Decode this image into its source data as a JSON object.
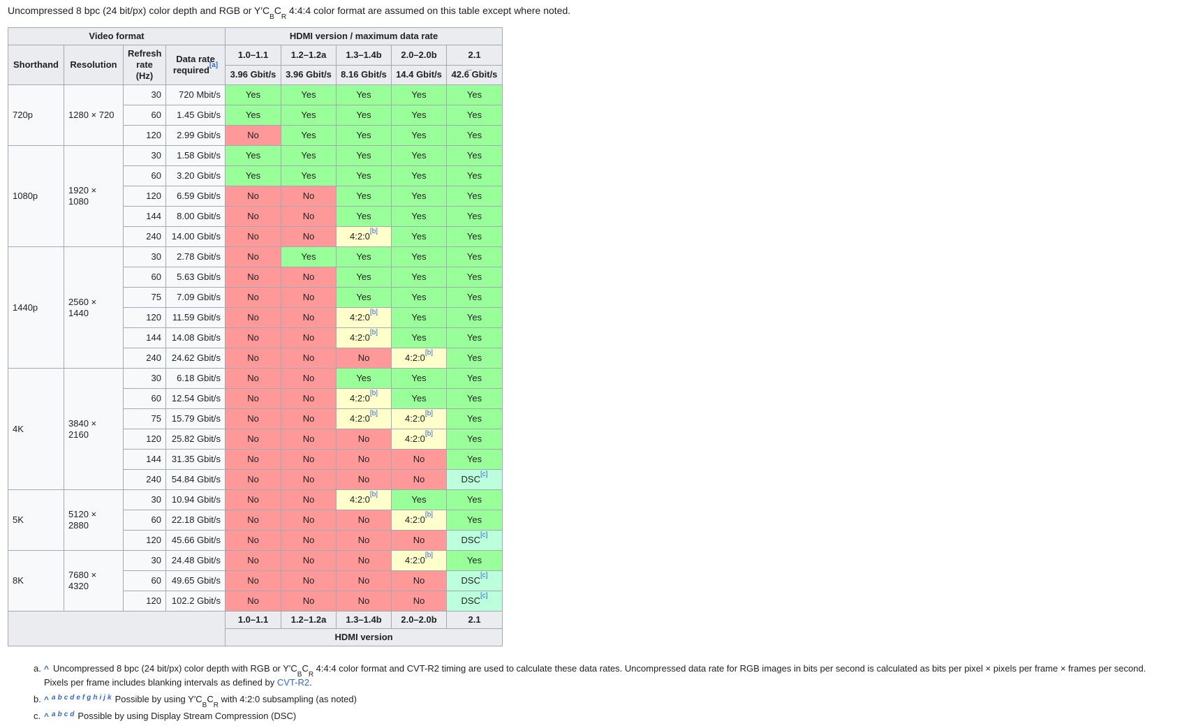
{
  "colors": {
    "status": {
      "yes": "#99ff99",
      "no": "#ff9999",
      "420": "#ffffcc",
      "dsc": "#bbffdd"
    },
    "header_bg": "#eaecf0",
    "cell_bg": "#f8f9fa",
    "border": "#a2a9b1",
    "link": "#3366cc"
  },
  "intro": {
    "parts": [
      {
        "t": "text",
        "v": "Uncompressed 8 bpc (24 bit/px) color depth and RGB or Y′C"
      },
      {
        "t": "sub",
        "v": "B"
      },
      {
        "t": "text",
        "v": "C"
      },
      {
        "t": "sub",
        "v": "R"
      },
      {
        "t": "text",
        "v": " 4:4:4 color format are assumed on this table except where noted."
      }
    ]
  },
  "table": {
    "top_headers": {
      "video_format": "Video format",
      "hdmi": "HDMI version / maximum data rate"
    },
    "col_headers": {
      "shorthand": "Shorthand",
      "resolution": "Resolution",
      "refresh": "Refresh rate (Hz)",
      "data_rate": "Data rate required",
      "data_rate_ref": "[a]"
    },
    "versions": [
      "1.0–1.1",
      "1.2–1.2a",
      "1.3–1.4b",
      "2.0–2.0b",
      "2.1"
    ],
    "max_rates": [
      "3.96 Gbit/s",
      "3.96 Gbit/s",
      "8.16 Gbit/s",
      "14.4 Gbit/s",
      "42.6̅ Gbit/s"
    ],
    "support_labels": {
      "yes": "Yes",
      "no": "No",
      "420": "4:2:0",
      "dsc": "DSC"
    },
    "support_refs": {
      "420": "[b]",
      "dsc": "[c]"
    },
    "footer_label": "HDMI version",
    "groups": [
      {
        "shorthand": "720p",
        "resolution": "1280 × 720",
        "rows": [
          {
            "refresh": "30",
            "rate": "720 Mbit/s",
            "support": [
              "yes",
              "yes",
              "yes",
              "yes",
              "yes"
            ]
          },
          {
            "refresh": "60",
            "rate": "1.45 Gbit/s",
            "support": [
              "yes",
              "yes",
              "yes",
              "yes",
              "yes"
            ]
          },
          {
            "refresh": "120",
            "rate": "2.99 Gbit/s",
            "support": [
              "no",
              "yes",
              "yes",
              "yes",
              "yes"
            ]
          }
        ]
      },
      {
        "shorthand": "1080p",
        "resolution": "1920 × 1080",
        "rows": [
          {
            "refresh": "30",
            "rate": "1.58 Gbit/s",
            "support": [
              "yes",
              "yes",
              "yes",
              "yes",
              "yes"
            ]
          },
          {
            "refresh": "60",
            "rate": "3.20 Gbit/s",
            "support": [
              "yes",
              "yes",
              "yes",
              "yes",
              "yes"
            ]
          },
          {
            "refresh": "120",
            "rate": "6.59 Gbit/s",
            "support": [
              "no",
              "no",
              "yes",
              "yes",
              "yes"
            ]
          },
          {
            "refresh": "144",
            "rate": "8.00 Gbit/s",
            "support": [
              "no",
              "no",
              "yes",
              "yes",
              "yes"
            ]
          },
          {
            "refresh": "240",
            "rate": "14.00 Gbit/s",
            "support": [
              "no",
              "no",
              "420",
              "yes",
              "yes"
            ]
          }
        ]
      },
      {
        "shorthand": "1440p",
        "resolution": "2560 × 1440",
        "rows": [
          {
            "refresh": "30",
            "rate": "2.78 Gbit/s",
            "support": [
              "no",
              "yes",
              "yes",
              "yes",
              "yes"
            ]
          },
          {
            "refresh": "60",
            "rate": "5.63 Gbit/s",
            "support": [
              "no",
              "no",
              "yes",
              "yes",
              "yes"
            ]
          },
          {
            "refresh": "75",
            "rate": "7.09 Gbit/s",
            "support": [
              "no",
              "no",
              "yes",
              "yes",
              "yes"
            ]
          },
          {
            "refresh": "120",
            "rate": "11.59 Gbit/s",
            "support": [
              "no",
              "no",
              "420",
              "yes",
              "yes"
            ]
          },
          {
            "refresh": "144",
            "rate": "14.08 Gbit/s",
            "support": [
              "no",
              "no",
              "420",
              "yes",
              "yes"
            ]
          },
          {
            "refresh": "240",
            "rate": "24.62 Gbit/s",
            "support": [
              "no",
              "no",
              "no",
              "420",
              "yes"
            ]
          }
        ]
      },
      {
        "shorthand": "4K",
        "resolution": "3840 × 2160",
        "rows": [
          {
            "refresh": "30",
            "rate": "6.18 Gbit/s",
            "support": [
              "no",
              "no",
              "yes",
              "yes",
              "yes"
            ]
          },
          {
            "refresh": "60",
            "rate": "12.54 Gbit/s",
            "support": [
              "no",
              "no",
              "420",
              "yes",
              "yes"
            ]
          },
          {
            "refresh": "75",
            "rate": "15.79 Gbit/s",
            "support": [
              "no",
              "no",
              "420",
              "420",
              "yes"
            ]
          },
          {
            "refresh": "120",
            "rate": "25.82 Gbit/s",
            "support": [
              "no",
              "no",
              "no",
              "420",
              "yes"
            ]
          },
          {
            "refresh": "144",
            "rate": "31.35 Gbit/s",
            "support": [
              "no",
              "no",
              "no",
              "no",
              "yes"
            ]
          },
          {
            "refresh": "240",
            "rate": "54.84 Gbit/s",
            "support": [
              "no",
              "no",
              "no",
              "no",
              "dsc"
            ]
          }
        ]
      },
      {
        "shorthand": "5K",
        "resolution": "5120 × 2880",
        "rows": [
          {
            "refresh": "30",
            "rate": "10.94 Gbit/s",
            "support": [
              "no",
              "no",
              "420",
              "yes",
              "yes"
            ]
          },
          {
            "refresh": "60",
            "rate": "22.18 Gbit/s",
            "support": [
              "no",
              "no",
              "no",
              "420",
              "yes"
            ]
          },
          {
            "refresh": "120",
            "rate": "45.66 Gbit/s",
            "support": [
              "no",
              "no",
              "no",
              "no",
              "dsc"
            ]
          }
        ]
      },
      {
        "shorthand": "8K",
        "resolution": "7680 × 4320",
        "rows": [
          {
            "refresh": "30",
            "rate": "24.48 Gbit/s",
            "support": [
              "no",
              "no",
              "no",
              "420",
              "yes"
            ]
          },
          {
            "refresh": "60",
            "rate": "49.65 Gbit/s",
            "support": [
              "no",
              "no",
              "no",
              "no",
              "dsc"
            ]
          },
          {
            "refresh": "120",
            "rate": "102.2 Gbit/s",
            "support": [
              "no",
              "no",
              "no",
              "no",
              "dsc"
            ]
          }
        ]
      }
    ]
  },
  "footnotes": [
    {
      "id": "a",
      "label": "a.",
      "caret": "^",
      "letters": [],
      "parts": [
        {
          "t": "text",
          "v": "Uncompressed 8 bpc (24 bit/px) color depth with RGB or Y′C"
        },
        {
          "t": "sub",
          "v": "B"
        },
        {
          "t": "text",
          "v": "C"
        },
        {
          "t": "sub",
          "v": "R"
        },
        {
          "t": "text",
          "v": " 4:4:4 color format and CVT-R2 timing are used to calculate these data rates. Uncompressed data rate for RGB images in bits per second is calculated as bits per pixel × pixels per frame × frames per second. Pixels per frame includes blanking intervals as defined by "
        },
        {
          "t": "link",
          "v": "CVT-R2"
        },
        {
          "t": "text",
          "v": "."
        }
      ]
    },
    {
      "id": "b",
      "label": "b.",
      "caret": "^",
      "letters": [
        "a",
        "b",
        "c",
        "d",
        "e",
        "f",
        "g",
        "h",
        "i",
        "j",
        "k"
      ],
      "parts": [
        {
          "t": "text",
          "v": "Possible by using Y′C"
        },
        {
          "t": "sub",
          "v": "B"
        },
        {
          "t": "text",
          "v": "C"
        },
        {
          "t": "sub",
          "v": "R"
        },
        {
          "t": "text",
          "v": " with 4:2:0 subsampling (as noted)"
        }
      ]
    },
    {
      "id": "c",
      "label": "c.",
      "caret": "^",
      "letters": [
        "a",
        "b",
        "c",
        "d"
      ],
      "parts": [
        {
          "t": "text",
          "v": "Possible by using Display Stream Compression (DSC)"
        }
      ]
    }
  ]
}
